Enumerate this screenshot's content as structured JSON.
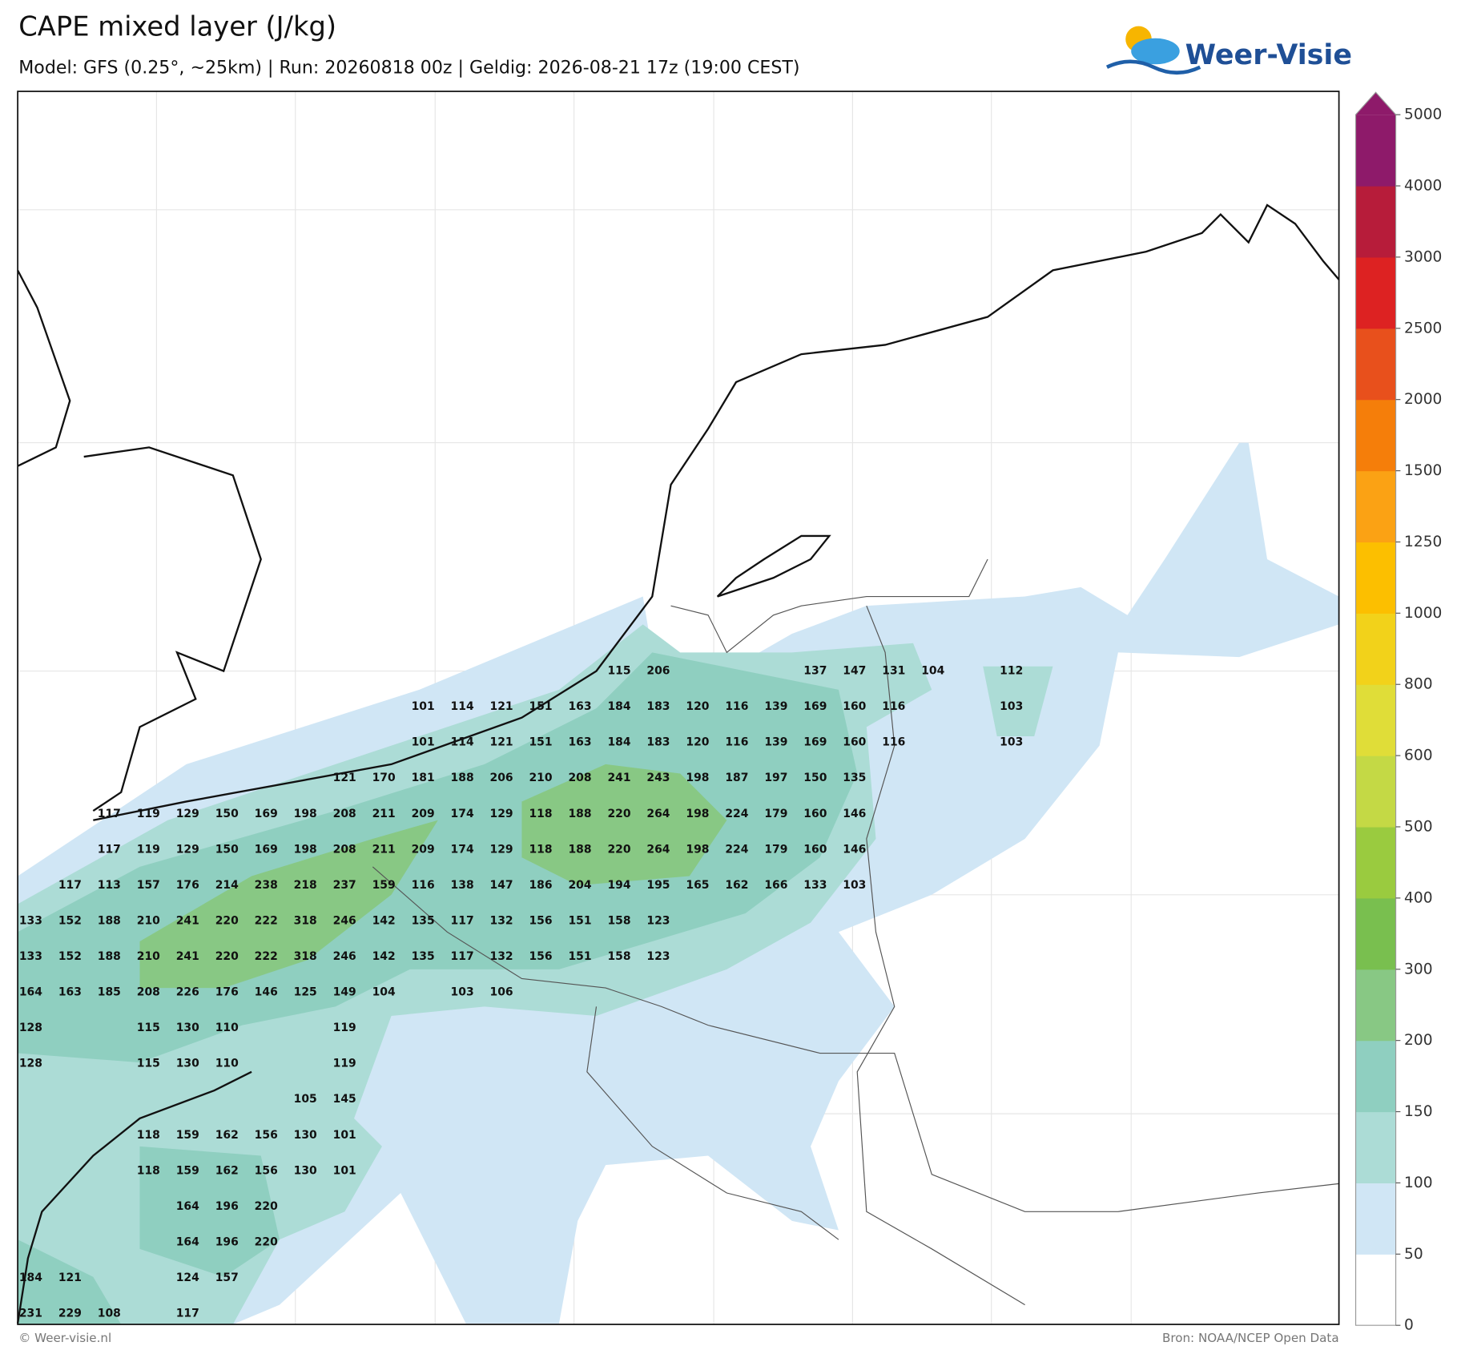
{
  "header": {
    "title": "CAPE mixed layer (J/kg)",
    "subtitle": "Model: GFS (0.25°, ~25km)  |  Run: 20260818 00z  |  Geldig: 2026-08-21 17z (19:00 CEST)"
  },
  "logo": "Weer-Visie",
  "map": {
    "labels": [
      [
        null,
        null,
        null,
        null,
        null,
        null,
        null,
        null,
        null,
        null,
        null,
        null,
        null,
        null,
        null,
        115,
        206,
        null,
        null,
        null,
        137,
        147,
        131,
        104,
        null,
        112
      ],
      [
        null,
        null,
        null,
        null,
        null,
        null,
        null,
        null,
        null,
        null,
        101,
        114,
        121,
        151,
        163,
        184,
        183,
        120,
        116,
        139,
        169,
        160,
        116,
        null,
        null,
        103
      ],
      [
        null,
        null,
        null,
        null,
        null,
        null,
        null,
        null,
        null,
        null,
        101,
        114,
        121,
        151,
        163,
        184,
        183,
        120,
        116,
        139,
        169,
        160,
        116,
        null,
        null,
        103
      ],
      [
        null,
        null,
        null,
        null,
        null,
        null,
        null,
        null,
        121,
        170,
        181,
        188,
        206,
        210,
        208,
        241,
        243,
        198,
        187,
        197,
        150,
        135
      ],
      [
        null,
        null,
        117,
        119,
        129,
        150,
        169,
        198,
        208,
        211,
        209,
        174,
        129,
        118,
        188,
        220,
        264,
        198,
        224,
        179,
        160,
        146
      ],
      [
        null,
        null,
        117,
        119,
        129,
        150,
        169,
        198,
        208,
        211,
        209,
        174,
        129,
        118,
        188,
        220,
        264,
        198,
        224,
        179,
        160,
        146
      ],
      [
        null,
        117,
        113,
        157,
        176,
        214,
        238,
        218,
        237,
        159,
        116,
        138,
        147,
        186,
        204,
        194,
        195,
        165,
        162,
        166,
        133,
        103
      ],
      [
        133,
        152,
        188,
        210,
        241,
        220,
        222,
        318,
        246,
        142,
        135,
        117,
        132,
        156,
        151,
        158,
        123
      ],
      [
        133,
        152,
        188,
        210,
        241,
        220,
        222,
        318,
        246,
        142,
        135,
        117,
        132,
        156,
        151,
        158,
        123
      ],
      [
        164,
        163,
        185,
        208,
        226,
        176,
        146,
        125,
        149,
        104,
        null,
        103,
        106
      ],
      [
        128,
        null,
        null,
        115,
        130,
        110,
        null,
        null,
        119
      ],
      [
        128,
        null,
        null,
        115,
        130,
        110,
        null,
        null,
        119
      ],
      [
        null,
        null,
        null,
        null,
        null,
        null,
        null,
        105,
        145
      ],
      [
        null,
        null,
        null,
        118,
        159,
        162,
        156,
        130,
        101
      ],
      [
        null,
        null,
        null,
        118,
        159,
        162,
        156,
        130,
        101
      ],
      [
        null,
        null,
        null,
        null,
        164,
        196,
        220
      ],
      [
        null,
        null,
        null,
        null,
        164,
        196,
        220
      ],
      [
        184,
        121,
        null,
        null,
        124,
        157
      ],
      [
        231,
        229,
        108,
        null,
        117
      ]
    ]
  },
  "colorbar": {
    "levels": [
      0,
      50,
      100,
      150,
      200,
      300,
      400,
      500,
      600,
      800,
      1000,
      1250,
      1500,
      2000,
      2500,
      3000,
      4000,
      5000
    ],
    "colors": [
      "#ffffff",
      "#d0e6f5",
      "#acdcd6",
      "#8fcfc0",
      "#88c884",
      "#79bf4f",
      "#9acb3f",
      "#c4d945",
      "#e0dd38",
      "#f2d21a",
      "#fcbf00",
      "#fba214",
      "#f57e0a",
      "#e8501c",
      "#dd2222",
      "#b71c3a",
      "#8e1a6a"
    ]
  },
  "footer": {
    "left": "© Weer-visie.nl",
    "right": "Bron: NOAA/NCEP Open Data"
  }
}
